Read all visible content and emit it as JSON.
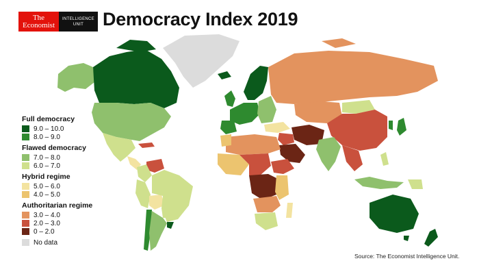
{
  "header": {
    "logo_line1": "The",
    "logo_line2": "Economist",
    "logo_unit_line1": "INTELLIGENCE",
    "logo_unit_line2": "UNIT",
    "title": "Democracy Index 2019"
  },
  "legend": {
    "groups": [
      {
        "heading": "Full democracy",
        "items": [
          {
            "range": "9.0 – 10.0",
            "color": "#0b5a1c"
          },
          {
            "range": "8.0 – 9.0",
            "color": "#2e8a2f"
          }
        ]
      },
      {
        "heading": "Flawed democracy",
        "items": [
          {
            "range": "7.0 – 8.0",
            "color": "#8fc06d"
          },
          {
            "range": "6.0 – 7.0",
            "color": "#cfe08d"
          }
        ]
      },
      {
        "heading": "Hybrid regime",
        "items": [
          {
            "range": "5.0 – 6.0",
            "color": "#f3e3a0"
          },
          {
            "range": "4.0 – 5.0",
            "color": "#ecc46f"
          }
        ]
      },
      {
        "heading": "Authoritarian regime",
        "items": [
          {
            "range": "3.0 – 4.0",
            "color": "#e3935e"
          },
          {
            "range": "2.0 – 3.0",
            "color": "#c9513d"
          },
          {
            "range": "0 – 2.0",
            "color": "#6b2515"
          }
        ]
      }
    ],
    "no_data": {
      "label": "No data",
      "color": "#dcdcdc"
    }
  },
  "source": "Source: The Economist Intelligence Unit."
}
